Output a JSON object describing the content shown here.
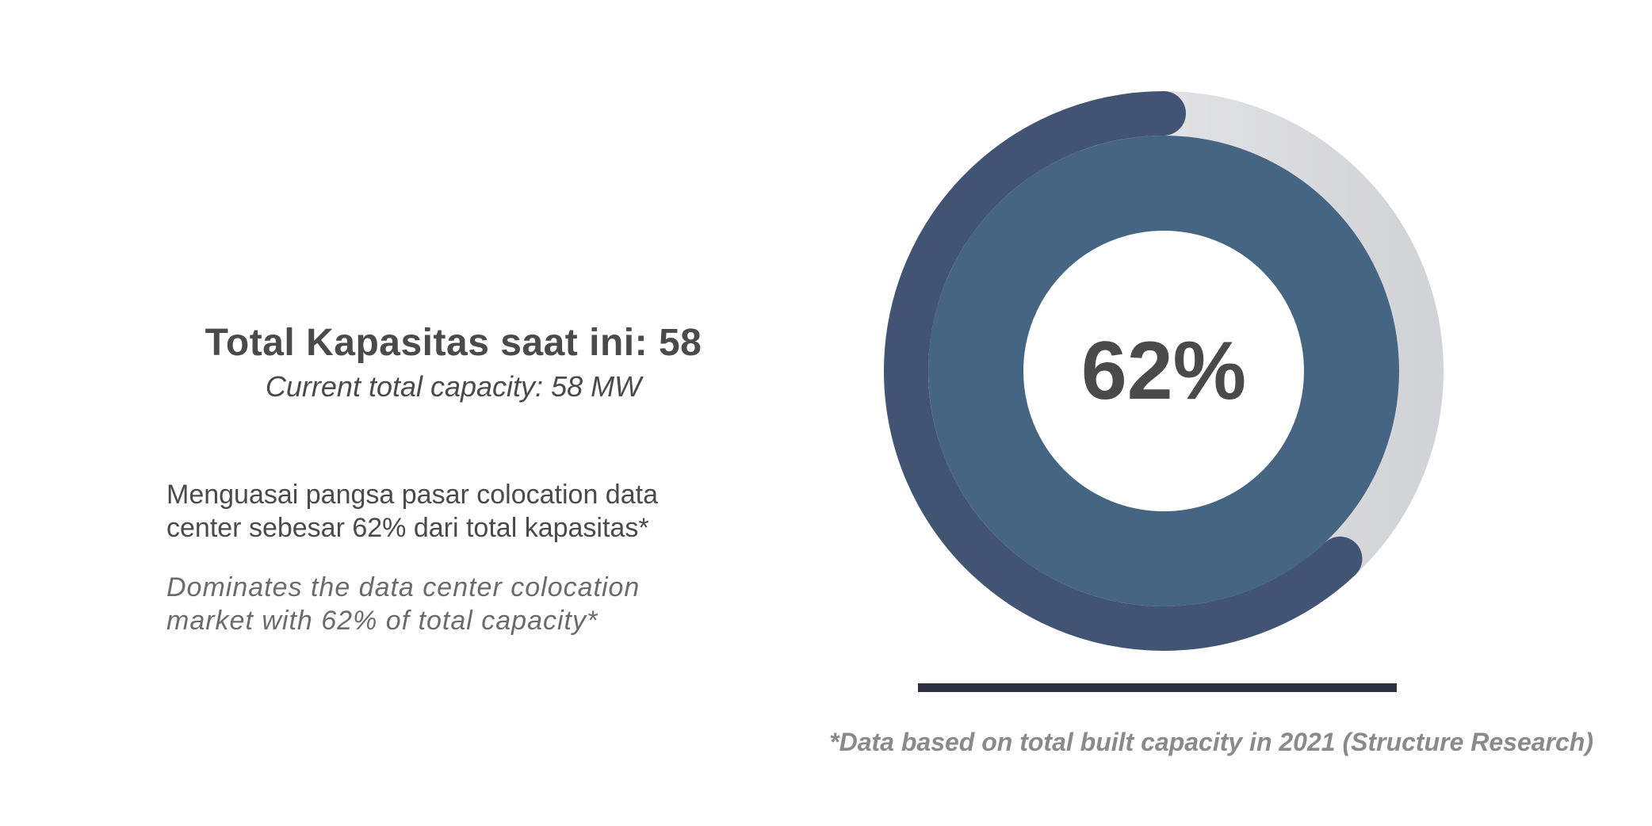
{
  "info": {
    "headline": "Total Kapasitas saat ini: 58",
    "subheadline": "Current total capacity: 58 MW",
    "description_id_line1": "Menguasai pangsa pasar colocation data",
    "description_id_line2": "center sebesar 62% dari total kapasitas*",
    "description_en_line1": "Dominates the data center colocation",
    "description_en_line2": "market with 62% of total capacity*"
  },
  "footnote": "*Data based on total built capacity in 2021 (Structure Research)",
  "colors": {
    "arc_fill": "#425473",
    "inner_ring": "#456582",
    "track": "#dcdde0",
    "center_text": "#4a4a4a",
    "baseline": "#2c2e45"
  },
  "chart_data": {
    "type": "pie",
    "style": "donut-progress",
    "value": 62,
    "max": 100,
    "center_label": "62%",
    "title": "",
    "legend": []
  }
}
